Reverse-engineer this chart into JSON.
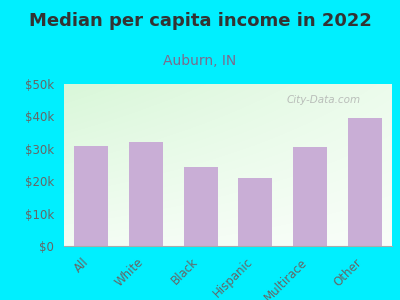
{
  "title": "Median per capita income in 2022",
  "subtitle": "Auburn, IN",
  "categories": [
    "All",
    "White",
    "Black",
    "Hispanic",
    "Multirace",
    "Other"
  ],
  "values": [
    31000,
    32000,
    24500,
    21000,
    30500,
    39500
  ],
  "bar_color": "#c9aed6",
  "background_outer": "#00efff",
  "title_color": "#333333",
  "subtitle_color": "#7b6b8d",
  "tick_label_color": "#666666",
  "watermark_text": "City-Data.com",
  "ylim": [
    0,
    50000
  ],
  "yticks": [
    0,
    10000,
    20000,
    30000,
    40000,
    50000
  ],
  "title_fontsize": 13,
  "subtitle_fontsize": 10,
  "tick_fontsize": 8.5
}
